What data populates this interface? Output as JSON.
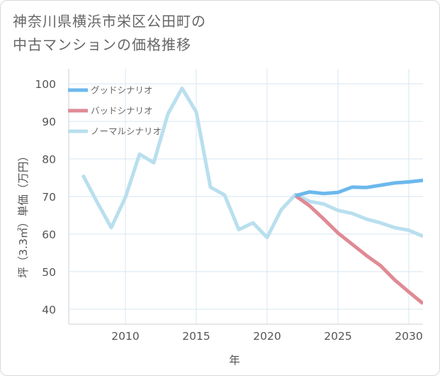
{
  "title_line1": "神奈川県横浜市栄区公田町の",
  "title_line2": "中古マンションの価格推移",
  "chart_data": {
    "type": "line",
    "title": "神奈川県横浜市栄区公田町の中古マンションの価格推移",
    "xlabel": "年",
    "ylabel": "坪（3.3㎡）単価（万円）",
    "xlim": [
      2006,
      2031
    ],
    "ylim": [
      36,
      104
    ],
    "xticks": [
      2010,
      2015,
      2020,
      2025,
      2030
    ],
    "yticks": [
      40,
      50,
      60,
      70,
      80,
      90,
      100
    ],
    "legend_position": "top-left",
    "series": [
      {
        "name": "グッドシナリオ",
        "color": "#6cb8ec",
        "x": [
          2022,
          2023,
          2024,
          2025,
          2026,
          2027,
          2028,
          2029,
          2030,
          2031
        ],
        "y": [
          70.2,
          71.2,
          70.8,
          71.1,
          72.5,
          72.4,
          73.0,
          73.6,
          73.9,
          74.3
        ]
      },
      {
        "name": "バッドシナリオ",
        "color": "#e08a94",
        "x": [
          2022,
          2023,
          2024,
          2025,
          2026,
          2027,
          2028,
          2029,
          2030,
          2031
        ],
        "y": [
          70.2,
          67.5,
          64.0,
          60.3,
          57.3,
          54.3,
          51.6,
          47.8,
          44.6,
          41.5
        ]
      },
      {
        "name": "ノーマルシナリオ",
        "color": "#b9dfee",
        "x": [
          2007,
          2008,
          2009,
          2010,
          2011,
          2012,
          2013,
          2014,
          2015,
          2016,
          2017,
          2018,
          2019,
          2020,
          2021,
          2022,
          2023,
          2024,
          2025,
          2026,
          2027,
          2028,
          2029,
          2030,
          2031
        ],
        "y": [
          75.7,
          68.5,
          61.7,
          69.8,
          81.3,
          79.0,
          92.0,
          98.8,
          92.5,
          72.5,
          70.4,
          61.2,
          63.0,
          59.1,
          66.5,
          70.5,
          68.7,
          68.0,
          66.3,
          65.5,
          64.0,
          63.0,
          61.7,
          61.0,
          59.4
        ]
      }
    ]
  }
}
